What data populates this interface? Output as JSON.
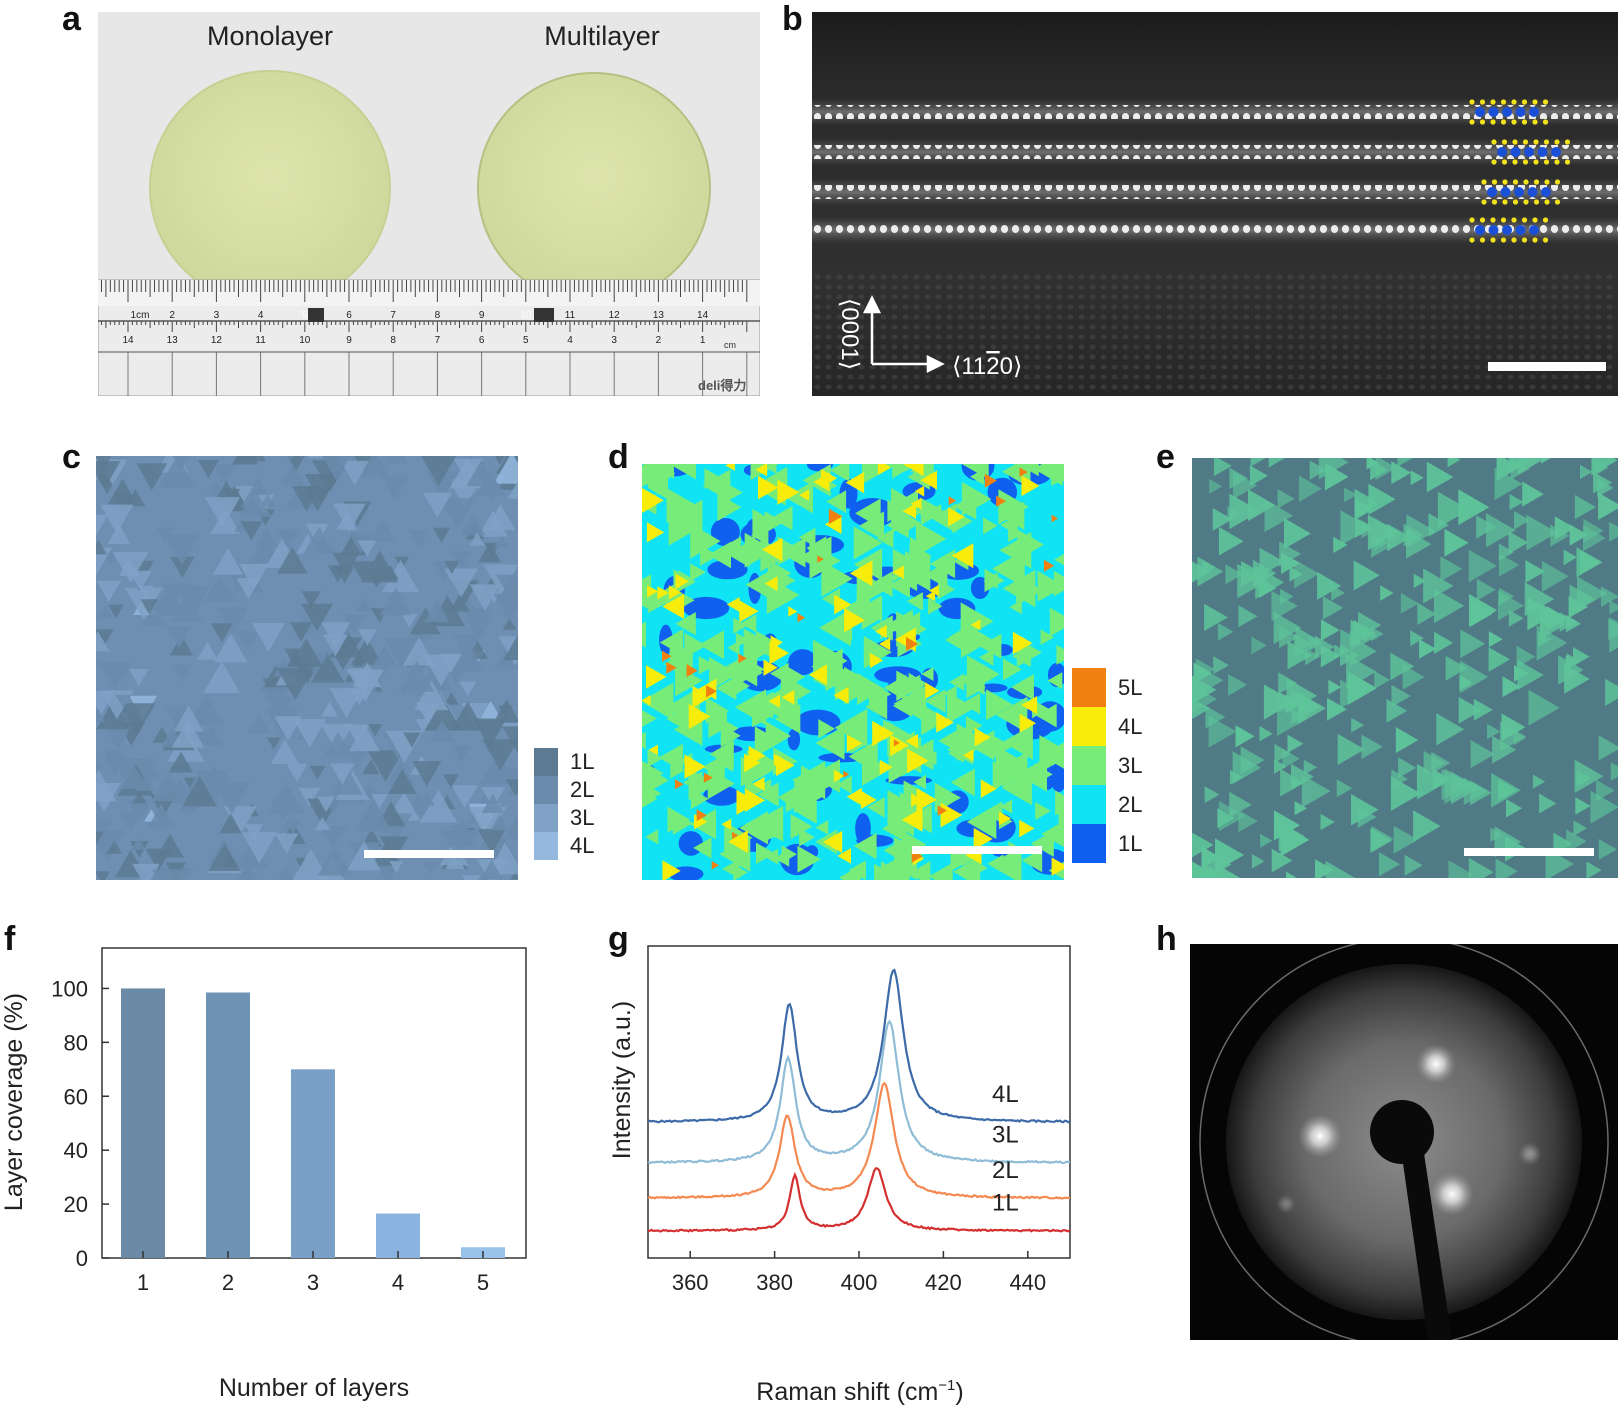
{
  "panels": {
    "a": {
      "letter": "a",
      "wafer_left": "Monolayer",
      "wafer_right": "Multilayer",
      "ruler_top": [
        "1cm",
        "2",
        "3",
        "4",
        "5",
        "6",
        "7",
        "8",
        "9",
        "10",
        "11",
        "12",
        "13",
        "14"
      ],
      "ruler_bottom": [
        "14",
        "13",
        "12",
        "11",
        "10",
        "9",
        "8",
        "7",
        "6",
        "5",
        "4",
        "3",
        "2",
        "1"
      ],
      "ruler_cm": "cm",
      "ruler_brand": "deli得力",
      "colors": {
        "background": "#e8e8e8",
        "wafer": "#d6dea0"
      }
    },
    "b": {
      "letter": "b",
      "axis_vertical": "⟨0001⟩",
      "axis_horizontal": "⟨11",
      "axis_horizontal_bar": "2",
      "axis_horizontal_end": "0⟩",
      "colors": {
        "metal_atom": "#1a4fd8",
        "chalcogen_atom": "#f2e21a"
      }
    },
    "c": {
      "letter": "c",
      "legend": [
        {
          "label": "1L",
          "color": "#5c7a92"
        },
        {
          "label": "2L",
          "color": "#6a8bab"
        },
        {
          "label": "3L",
          "color": "#7fa1c6"
        },
        {
          "label": "4L",
          "color": "#94b8de"
        }
      ]
    },
    "d": {
      "letter": "d",
      "legend": [
        {
          "label": "5L",
          "color": "#f08010"
        },
        {
          "label": "4L",
          "color": "#f8ec0a"
        },
        {
          "label": "3L",
          "color": "#78ec78"
        },
        {
          "label": "2L",
          "color": "#10e4f4"
        },
        {
          "label": "1L",
          "color": "#1060f0"
        }
      ]
    },
    "e": {
      "letter": "e",
      "colors": {
        "background": "#4f7a86",
        "triangles": "#5ec49a"
      }
    },
    "f": {
      "letter": "f"
    },
    "g": {
      "letter": "g",
      "trace_labels": [
        "4L",
        "3L",
        "2L",
        "1L"
      ]
    },
    "h": {
      "letter": "h"
    }
  },
  "chart_data": [
    {
      "panel": "f",
      "type": "bar",
      "categories": [
        "1",
        "2",
        "3",
        "4",
        "5"
      ],
      "values": [
        100,
        98.5,
        70,
        16.5,
        4
      ],
      "colors": [
        "#6a8aa6",
        "#6f93b5",
        "#7ba0c8",
        "#8ab3df",
        "#98c2ea"
      ],
      "xlabel": "Number of layers",
      "ylabel": "Layer coverage (%)",
      "ylim": [
        0,
        115
      ],
      "yticks": [
        0,
        20,
        40,
        60,
        80,
        100
      ],
      "grid": false
    },
    {
      "panel": "g",
      "type": "line",
      "xlabel": "Raman shift (cm",
      "xlabel_sup": "−1",
      "xlabel_end": ")",
      "ylabel": "Intensity (a.u.)",
      "xlim": [
        350,
        450
      ],
      "xticks": [
        360,
        380,
        400,
        420,
        440
      ],
      "grid": false,
      "series": [
        {
          "name": "4L",
          "color": "#3d6aa8",
          "baseline": 5.0,
          "peaks": [
            [
              383.5,
              4.3,
              2.2
            ],
            [
              408.2,
              5.6,
              2.8
            ]
          ]
        },
        {
          "name": "3L",
          "color": "#8fbcd6",
          "baseline": 3.5,
          "peaks": [
            [
              383.2,
              3.8,
              2.2
            ],
            [
              407.2,
              5.2,
              2.8
            ]
          ]
        },
        {
          "name": "2L",
          "color": "#f48a52",
          "baseline": 2.2,
          "peaks": [
            [
              383.0,
              3.0,
              2.2
            ],
            [
              406.0,
              4.2,
              2.8
            ]
          ]
        },
        {
          "name": "1L",
          "color": "#d43030",
          "baseline": 1.0,
          "peaks": [
            [
              384.8,
              2.0,
              1.5
            ],
            [
              404.2,
              2.3,
              2.6
            ]
          ]
        }
      ]
    }
  ]
}
